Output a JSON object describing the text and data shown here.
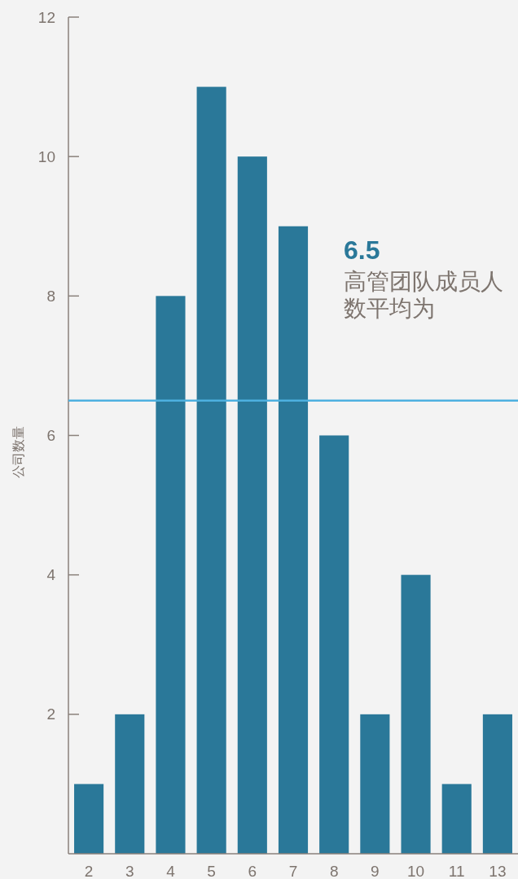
{
  "chart_data": {
    "type": "bar",
    "ylabel": "公司数量",
    "categories": [
      "2",
      "3",
      "4",
      "5",
      "6",
      "7",
      "8",
      "9",
      "10",
      "11",
      "13"
    ],
    "values": [
      1,
      2,
      8,
      11,
      10,
      9,
      6,
      2,
      4,
      1,
      2
    ],
    "color": "#2a7899",
    "ylim": [
      0,
      12
    ],
    "yticks": [
      2,
      4,
      6,
      8,
      10,
      12
    ],
    "ref_lines": [
      {
        "axis": "y",
        "value": 6.5,
        "color": "#4db0e0"
      }
    ],
    "annotations": [
      "6.5",
      "高管团队成员人数平均为"
    ]
  }
}
